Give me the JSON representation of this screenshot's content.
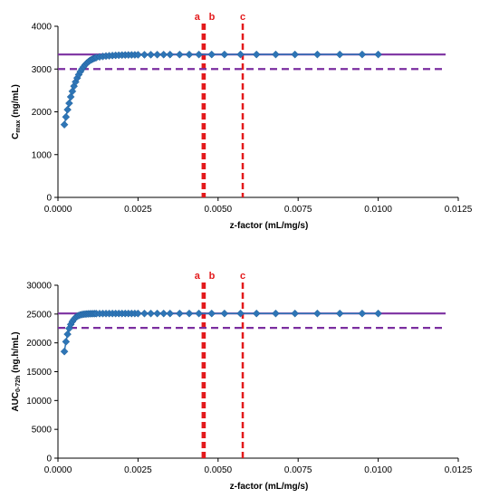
{
  "chart_data": [
    {
      "type": "scatter",
      "ylabel_main": "C",
      "ylabel_sub": "max",
      "ylabel_unit": " (ng/mL)",
      "xlabel": "z-factor (mL/mg/s)",
      "xlim": [
        0,
        0.0125
      ],
      "ylim": [
        0,
        4000
      ],
      "xticks": [
        "0.0000",
        "0.0025",
        "0.0050",
        "0.0075",
        "0.0100",
        "0.0125"
      ],
      "xtick_values": [
        0,
        0.0025,
        0.005,
        0.0075,
        0.01,
        0.0125
      ],
      "yticks": [
        "0",
        "1000",
        "2000",
        "3000",
        "4000"
      ],
      "ytick_values": [
        0,
        1000,
        2000,
        3000,
        4000
      ],
      "grid": false,
      "reference_lines": {
        "solid_y": 3340,
        "dashed_y": 3000,
        "solid_color": "#7b2fa0",
        "dashed_color": "#7b2fa0"
      },
      "vertical_markers": [
        {
          "label": "a",
          "x": 0.00452
        },
        {
          "label": "b",
          "x": 0.00458
        },
        {
          "label": "c",
          "x": 0.00577
        }
      ],
      "marker_color": "#e31a1c",
      "series_color": "#2e75b6",
      "x": [
        0.0002,
        0.00025,
        0.0003,
        0.00035,
        0.0004,
        0.00045,
        0.0005,
        0.00055,
        0.0006,
        0.00065,
        0.0007,
        0.00075,
        0.0008,
        0.00085,
        0.0009,
        0.00095,
        0.001,
        0.00105,
        0.0011,
        0.00115,
        0.0012,
        0.0013,
        0.0014,
        0.0015,
        0.0016,
        0.0017,
        0.0018,
        0.0019,
        0.002,
        0.0021,
        0.0022,
        0.0023,
        0.0024,
        0.0025,
        0.0027,
        0.0029,
        0.0031,
        0.0033,
        0.0035,
        0.0038,
        0.0041,
        0.0044,
        0.0048,
        0.0052,
        0.0057,
        0.0062,
        0.0068,
        0.0074,
        0.0081,
        0.0088,
        0.0095,
        0.01
      ],
      "y": [
        1700,
        1880,
        2050,
        2200,
        2350,
        2480,
        2600,
        2700,
        2790,
        2870,
        2940,
        3000,
        3050,
        3100,
        3140,
        3170,
        3200,
        3220,
        3240,
        3255,
        3270,
        3285,
        3295,
        3305,
        3310,
        3315,
        3320,
        3323,
        3326,
        3328,
        3330,
        3331,
        3332,
        3333,
        3334,
        3335,
        3336,
        3337,
        3338,
        3338,
        3339,
        3339,
        3340,
        3340,
        3340,
        3340,
        3340,
        3340,
        3340,
        3340,
        3340,
        3340
      ]
    },
    {
      "type": "scatter",
      "ylabel_main": "AUC",
      "ylabel_sub": "0-72h",
      "ylabel_unit": " (ng.h/mL)",
      "xlabel": "z-factor (mL/mg/s)",
      "xlim": [
        0,
        0.0125
      ],
      "ylim": [
        0,
        30000
      ],
      "xticks": [
        "0.0000",
        "0.0025",
        "0.0050",
        "0.0075",
        "0.0100",
        "0.0125"
      ],
      "xtick_values": [
        0,
        0.0025,
        0.005,
        0.0075,
        0.01,
        0.0125
      ],
      "yticks": [
        "0",
        "5000",
        "10000",
        "15000",
        "20000",
        "25000",
        "30000"
      ],
      "ytick_values": [
        0,
        5000,
        10000,
        15000,
        20000,
        25000,
        30000
      ],
      "grid": false,
      "reference_lines": {
        "solid_y": 25100,
        "dashed_y": 22600,
        "solid_color": "#7b2fa0",
        "dashed_color": "#7b2fa0"
      },
      "vertical_markers": [
        {
          "label": "a",
          "x": 0.00452
        },
        {
          "label": "b",
          "x": 0.00458
        },
        {
          "label": "c",
          "x": 0.00577
        }
      ],
      "marker_color": "#e31a1c",
      "series_color": "#2e75b6",
      "x": [
        0.0002,
        0.00025,
        0.0003,
        0.00035,
        0.0004,
        0.00045,
        0.0005,
        0.00055,
        0.0006,
        0.00065,
        0.0007,
        0.00075,
        0.0008,
        0.00085,
        0.0009,
        0.00095,
        0.001,
        0.00105,
        0.0011,
        0.00115,
        0.0012,
        0.0013,
        0.0014,
        0.0015,
        0.0016,
        0.0017,
        0.0018,
        0.0019,
        0.002,
        0.0021,
        0.0022,
        0.0023,
        0.0024,
        0.0025,
        0.0027,
        0.0029,
        0.0031,
        0.0033,
        0.0035,
        0.0038,
        0.0041,
        0.0044,
        0.0048,
        0.0052,
        0.0057,
        0.0062,
        0.0068,
        0.0074,
        0.0081,
        0.0088,
        0.0095,
        0.01
      ],
      "y": [
        18500,
        20200,
        21500,
        22500,
        23200,
        23700,
        24100,
        24400,
        24600,
        24750,
        24850,
        24920,
        24970,
        25000,
        25020,
        25040,
        25050,
        25060,
        25065,
        25070,
        25075,
        25080,
        25082,
        25084,
        25086,
        25088,
        25090,
        25091,
        25092,
        25093,
        25094,
        25095,
        25095,
        25096,
        25096,
        25097,
        25097,
        25098,
        25098,
        25098,
        25099,
        25099,
        25099,
        25100,
        25100,
        25100,
        25100,
        25100,
        25100,
        25100,
        25100,
        25100
      ]
    }
  ]
}
